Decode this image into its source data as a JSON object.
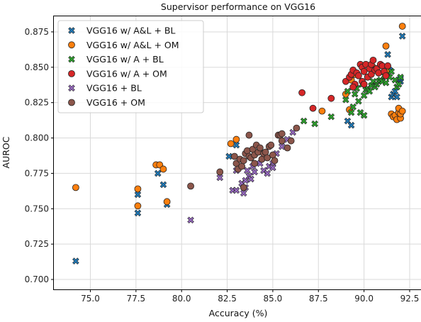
{
  "chart_data": {
    "type": "scatter",
    "title": "Supervisor performance on VGG16",
    "xlabel": "Accuracy (%)",
    "ylabel": "AUROC",
    "xlim": [
      73.0,
      93.2
    ],
    "ylim": [
      0.693,
      0.886
    ],
    "xticks": [
      "75.0",
      "77.5",
      "80.0",
      "82.5",
      "85.0",
      "87.5",
      "90.0",
      "92.5"
    ],
    "yticks": [
      "0.700",
      "0.725",
      "0.750",
      "0.775",
      "0.800",
      "0.825",
      "0.850",
      "0.875"
    ],
    "grid": true,
    "legend_position": "top-left",
    "series": [
      {
        "name": "VGG16 w/ A&L + BL",
        "marker": "x",
        "color": "#1f77b4",
        "points": [
          [
            74.2,
            0.713
          ],
          [
            77.6,
            0.747
          ],
          [
            77.6,
            0.76
          ],
          [
            78.7,
            0.775
          ],
          [
            79.0,
            0.767
          ],
          [
            79.2,
            0.753
          ],
          [
            82.6,
            0.787
          ],
          [
            83.0,
            0.795
          ],
          [
            89.1,
            0.812
          ],
          [
            89.3,
            0.809
          ],
          [
            91.3,
            0.859
          ],
          [
            91.5,
            0.829
          ],
          [
            91.6,
            0.831
          ],
          [
            91.7,
            0.833
          ],
          [
            91.8,
            0.829
          ],
          [
            91.9,
            0.838
          ],
          [
            92.0,
            0.84
          ],
          [
            92.0,
            0.842
          ],
          [
            92.1,
            0.872
          ],
          [
            91.4,
            0.848
          ]
        ]
      },
      {
        "name": "VGG16 w/ A&L + OM",
        "marker": "o",
        "color": "#ff7f0e",
        "points": [
          [
            74.2,
            0.765
          ],
          [
            77.6,
            0.764
          ],
          [
            77.6,
            0.752
          ],
          [
            78.6,
            0.781
          ],
          [
            78.8,
            0.781
          ],
          [
            79.0,
            0.778
          ],
          [
            79.2,
            0.755
          ],
          [
            82.7,
            0.796
          ],
          [
            83.0,
            0.799
          ],
          [
            87.7,
            0.819
          ],
          [
            89.0,
            0.831
          ],
          [
            89.2,
            0.82
          ],
          [
            89.3,
            0.841
          ],
          [
            89.5,
            0.845
          ],
          [
            90.5,
            0.85
          ],
          [
            90.8,
            0.846
          ],
          [
            91.2,
            0.865
          ],
          [
            91.3,
            0.847
          ],
          [
            91.5,
            0.817
          ],
          [
            91.6,
            0.815
          ],
          [
            91.7,
            0.816
          ],
          [
            91.8,
            0.813
          ],
          [
            91.9,
            0.818
          ],
          [
            91.9,
            0.821
          ],
          [
            92.0,
            0.814
          ],
          [
            92.0,
            0.817
          ],
          [
            92.1,
            0.819
          ],
          [
            92.1,
            0.879
          ]
        ]
      },
      {
        "name": "VGG16 w/ A + BL",
        "marker": "x",
        "color": "#2ca02c",
        "points": [
          [
            86.7,
            0.812
          ],
          [
            87.3,
            0.81
          ],
          [
            88.2,
            0.815
          ],
          [
            89.0,
            0.827
          ],
          [
            89.1,
            0.833
          ],
          [
            89.3,
            0.818
          ],
          [
            89.4,
            0.822
          ],
          [
            89.5,
            0.831
          ],
          [
            89.6,
            0.835
          ],
          [
            89.7,
            0.826
          ],
          [
            89.8,
            0.818
          ],
          [
            89.9,
            0.838
          ],
          [
            90.0,
            0.816
          ],
          [
            90.0,
            0.83
          ],
          [
            90.1,
            0.834
          ],
          [
            90.2,
            0.835
          ],
          [
            90.3,
            0.833
          ],
          [
            90.4,
            0.837
          ],
          [
            90.5,
            0.84
          ],
          [
            90.6,
            0.836
          ],
          [
            90.7,
            0.838
          ],
          [
            90.8,
            0.84
          ],
          [
            90.9,
            0.841
          ],
          [
            91.0,
            0.84
          ],
          [
            91.1,
            0.844
          ],
          [
            91.2,
            0.839
          ],
          [
            91.3,
            0.845
          ],
          [
            91.4,
            0.843
          ],
          [
            91.5,
            0.847
          ],
          [
            91.7,
            0.841
          ],
          [
            91.8,
            0.836
          ],
          [
            91.9,
            0.838
          ],
          [
            92.0,
            0.843
          ]
        ]
      },
      {
        "name": "VGG16 w/ A + OM",
        "marker": "o",
        "color": "#d62728",
        "points": [
          [
            86.6,
            0.832
          ],
          [
            87.2,
            0.821
          ],
          [
            88.2,
            0.828
          ],
          [
            89.0,
            0.84
          ],
          [
            89.2,
            0.843
          ],
          [
            89.3,
            0.845
          ],
          [
            89.4,
            0.848
          ],
          [
            89.5,
            0.838
          ],
          [
            89.6,
            0.846
          ],
          [
            89.7,
            0.844
          ],
          [
            89.8,
            0.852
          ],
          [
            89.9,
            0.85
          ],
          [
            89.9,
            0.84
          ],
          [
            90.0,
            0.847
          ],
          [
            90.1,
            0.852
          ],
          [
            90.2,
            0.843
          ],
          [
            90.3,
            0.849
          ],
          [
            90.4,
            0.852
          ],
          [
            90.4,
            0.845
          ],
          [
            90.5,
            0.855
          ],
          [
            90.6,
            0.848
          ],
          [
            90.7,
            0.849
          ],
          [
            90.8,
            0.846
          ],
          [
            90.9,
            0.852
          ],
          [
            91.0,
            0.851
          ],
          [
            91.1,
            0.847
          ],
          [
            91.2,
            0.844
          ],
          [
            91.3,
            0.851
          ],
          [
            89.4,
            0.836
          ],
          [
            90.0,
            0.838
          ]
        ]
      },
      {
        "name": "VGG16 + BL",
        "marker": "x",
        "color": "#9467bd",
        "points": [
          [
            80.5,
            0.742
          ],
          [
            82.1,
            0.772
          ],
          [
            82.8,
            0.763
          ],
          [
            83.0,
            0.763
          ],
          [
            83.0,
            0.777
          ],
          [
            83.1,
            0.779
          ],
          [
            83.3,
            0.768
          ],
          [
            83.4,
            0.761
          ],
          [
            83.5,
            0.765
          ],
          [
            83.5,
            0.77
          ],
          [
            83.6,
            0.777
          ],
          [
            83.7,
            0.773
          ],
          [
            83.8,
            0.771
          ],
          [
            83.9,
            0.78
          ],
          [
            84.0,
            0.776
          ],
          [
            84.3,
            0.782
          ],
          [
            84.5,
            0.777
          ],
          [
            84.7,
            0.775
          ],
          [
            84.8,
            0.78
          ],
          [
            85.0,
            0.782
          ],
          [
            85.0,
            0.779
          ],
          [
            85.2,
            0.789
          ],
          [
            85.5,
            0.794
          ],
          [
            85.8,
            0.799
          ],
          [
            86.1,
            0.804
          ]
        ]
      },
      {
        "name": "VGG16 + OM",
        "marker": "o",
        "color": "#8c564b",
        "points": [
          [
            80.5,
            0.766
          ],
          [
            82.1,
            0.776
          ],
          [
            82.9,
            0.787
          ],
          [
            83.0,
            0.782
          ],
          [
            83.1,
            0.778
          ],
          [
            83.2,
            0.785
          ],
          [
            83.3,
            0.78
          ],
          [
            83.4,
            0.784
          ],
          [
            83.5,
            0.789
          ],
          [
            83.6,
            0.791
          ],
          [
            83.7,
            0.802
          ],
          [
            83.7,
            0.787
          ],
          [
            83.8,
            0.786
          ],
          [
            83.9,
            0.792
          ],
          [
            84.0,
            0.788
          ],
          [
            84.0,
            0.782
          ],
          [
            84.1,
            0.795
          ],
          [
            84.2,
            0.79
          ],
          [
            84.3,
            0.793
          ],
          [
            84.4,
            0.785
          ],
          [
            84.5,
            0.789
          ],
          [
            84.6,
            0.79
          ],
          [
            84.7,
            0.786
          ],
          [
            84.8,
            0.794
          ],
          [
            85.0,
            0.788
          ],
          [
            85.1,
            0.784
          ],
          [
            85.3,
            0.802
          ],
          [
            85.4,
            0.802
          ],
          [
            85.5,
            0.798
          ],
          [
            85.5,
            0.803
          ],
          [
            85.8,
            0.793
          ],
          [
            86.0,
            0.798
          ],
          [
            86.3,
            0.807
          ],
          [
            83.4,
            0.765
          ],
          [
            84.9,
            0.795
          ]
        ]
      }
    ]
  }
}
